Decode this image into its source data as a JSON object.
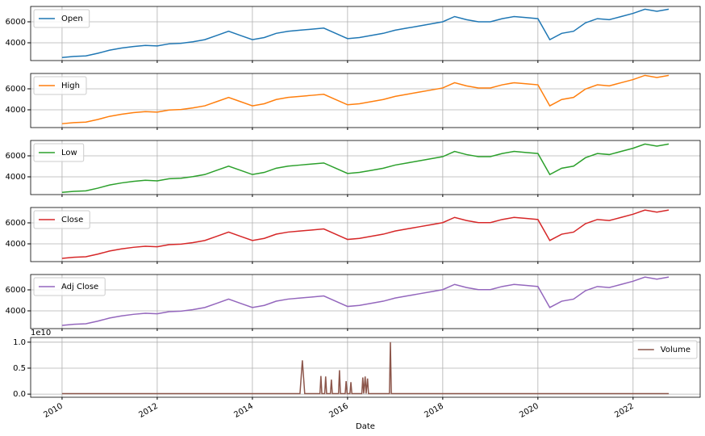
{
  "chart_data": [
    {
      "type": "line",
      "x": [
        2010,
        2010.25,
        2010.5,
        2010.75,
        2011,
        2011.25,
        2011.5,
        2011.75,
        2012,
        2012.25,
        2012.5,
        2012.75,
        2013,
        2013.25,
        2013.5,
        2013.75,
        2014,
        2014.25,
        2014.5,
        2014.75,
        2015,
        2015.25,
        2015.5,
        2015.75,
        2016,
        2016.25,
        2016.5,
        2016.75,
        2017,
        2017.25,
        2017.5,
        2017.75,
        2018,
        2018.25,
        2018.5,
        2018.75,
        2019,
        2019.25,
        2019.5,
        2019.75,
        2020,
        2020.25,
        2020.5,
        2020.75,
        2021,
        2021.25,
        2021.5,
        2021.75,
        2022,
        2022.25,
        2022.5,
        2022.75
      ],
      "series": [
        {
          "name": "Open",
          "color": "#1f77b4",
          "values": [
            2600,
            2700,
            2750,
            3000,
            3300,
            3500,
            3650,
            3750,
            3700,
            3900,
            3950,
            4100,
            4300,
            4700,
            5100,
            4700,
            4300,
            4500,
            4900,
            5100,
            5200,
            5300,
            5400,
            4900,
            4400,
            4500,
            4700,
            4900,
            5200,
            5400,
            5600,
            5800,
            6000,
            6500,
            6200,
            6000,
            6000,
            6300,
            6500,
            6400,
            6300,
            4300,
            4900,
            5100,
            5900,
            6300,
            6200,
            6500,
            6800,
            7200,
            7000,
            7200
          ]
        }
      ],
      "xlim": [
        2009.34,
        2023.41
      ],
      "xticks": [
        2010,
        2012,
        2014,
        2016,
        2018,
        2020,
        2022
      ],
      "ylim": [
        2310,
        7460
      ],
      "yticks": [
        4000,
        6000
      ],
      "grid": true,
      "legend": "upper left"
    },
    {
      "type": "line",
      "x": [
        2010,
        2010.25,
        2010.5,
        2010.75,
        2011,
        2011.25,
        2011.5,
        2011.75,
        2012,
        2012.25,
        2012.5,
        2012.75,
        2013,
        2013.25,
        2013.5,
        2013.75,
        2014,
        2014.25,
        2014.5,
        2014.75,
        2015,
        2015.25,
        2015.5,
        2015.75,
        2016,
        2016.25,
        2016.5,
        2016.75,
        2017,
        2017.25,
        2017.5,
        2017.75,
        2018,
        2018.25,
        2018.5,
        2018.75,
        2019,
        2019.25,
        2019.5,
        2019.75,
        2020,
        2020.25,
        2020.5,
        2020.75,
        2021,
        2021.25,
        2021.5,
        2021.75,
        2022,
        2022.25,
        2022.5,
        2022.75
      ],
      "series": [
        {
          "name": "High",
          "color": "#ff7f0e",
          "values": [
            2680,
            2780,
            2830,
            3080,
            3380,
            3580,
            3730,
            3830,
            3780,
            3980,
            4030,
            4180,
            4380,
            4780,
            5180,
            4780,
            4380,
            4580,
            4980,
            5180,
            5280,
            5380,
            5480,
            4980,
            4480,
            4580,
            4780,
            4980,
            5280,
            5480,
            5680,
            5880,
            6080,
            6580,
            6280,
            6080,
            6080,
            6380,
            6580,
            6480,
            6380,
            4380,
            4980,
            5180,
            5980,
            6380,
            6280,
            6580,
            6880,
            7280,
            7080,
            7280
          ]
        }
      ],
      "xlim": [
        2009.34,
        2023.41
      ],
      "xticks": [
        2010,
        2012,
        2014,
        2016,
        2018,
        2020,
        2022
      ],
      "ylim": [
        2310,
        7460
      ],
      "yticks": [
        4000,
        6000
      ],
      "grid": true,
      "legend": "upper left"
    },
    {
      "type": "line",
      "x": [
        2010,
        2010.25,
        2010.5,
        2010.75,
        2011,
        2011.25,
        2011.5,
        2011.75,
        2012,
        2012.25,
        2012.5,
        2012.75,
        2013,
        2013.25,
        2013.5,
        2013.75,
        2014,
        2014.25,
        2014.5,
        2014.75,
        2015,
        2015.25,
        2015.5,
        2015.75,
        2016,
        2016.25,
        2016.5,
        2016.75,
        2017,
        2017.25,
        2017.5,
        2017.75,
        2018,
        2018.25,
        2018.5,
        2018.75,
        2019,
        2019.25,
        2019.5,
        2019.75,
        2020,
        2020.25,
        2020.5,
        2020.75,
        2021,
        2021.25,
        2021.5,
        2021.75,
        2022,
        2022.25,
        2022.5,
        2022.75
      ],
      "series": [
        {
          "name": "Low",
          "color": "#2ca02c",
          "values": [
            2520,
            2620,
            2670,
            2920,
            3220,
            3420,
            3570,
            3670,
            3620,
            3820,
            3870,
            4020,
            4220,
            4620,
            5020,
            4620,
            4220,
            4420,
            4820,
            5020,
            5120,
            5220,
            5320,
            4820,
            4320,
            4420,
            4620,
            4820,
            5120,
            5320,
            5520,
            5720,
            5920,
            6420,
            6120,
            5920,
            5920,
            6220,
            6420,
            6320,
            6220,
            4220,
            4820,
            5020,
            5820,
            6220,
            6120,
            6420,
            6720,
            7120,
            6920,
            7120
          ]
        }
      ],
      "xlim": [
        2009.34,
        2023.41
      ],
      "xticks": [
        2010,
        2012,
        2014,
        2016,
        2018,
        2020,
        2022
      ],
      "ylim": [
        2310,
        7460
      ],
      "yticks": [
        4000,
        6000
      ],
      "grid": true,
      "legend": "upper left"
    },
    {
      "type": "line",
      "x": [
        2010,
        2010.25,
        2010.5,
        2010.75,
        2011,
        2011.25,
        2011.5,
        2011.75,
        2012,
        2012.25,
        2012.5,
        2012.75,
        2013,
        2013.25,
        2013.5,
        2013.75,
        2014,
        2014.25,
        2014.5,
        2014.75,
        2015,
        2015.25,
        2015.5,
        2015.75,
        2016,
        2016.25,
        2016.5,
        2016.75,
        2017,
        2017.25,
        2017.5,
        2017.75,
        2018,
        2018.25,
        2018.5,
        2018.75,
        2019,
        2019.25,
        2019.5,
        2019.75,
        2020,
        2020.25,
        2020.5,
        2020.75,
        2021,
        2021.25,
        2021.5,
        2021.75,
        2022,
        2022.25,
        2022.5,
        2022.75
      ],
      "series": [
        {
          "name": "Close",
          "color": "#d62728",
          "values": [
            2620,
            2720,
            2770,
            3020,
            3320,
            3520,
            3670,
            3770,
            3720,
            3920,
            3970,
            4120,
            4320,
            4720,
            5120,
            4720,
            4320,
            4520,
            4920,
            5120,
            5220,
            5320,
            5420,
            4920,
            4420,
            4520,
            4720,
            4920,
            5220,
            5420,
            5620,
            5820,
            6020,
            6520,
            6220,
            6020,
            6020,
            6320,
            6520,
            6420,
            6320,
            4320,
            4920,
            5120,
            5920,
            6320,
            6220,
            6520,
            6820,
            7220,
            7020,
            7220
          ]
        }
      ],
      "xlim": [
        2009.34,
        2023.41
      ],
      "xticks": [
        2010,
        2012,
        2014,
        2016,
        2018,
        2020,
        2022
      ],
      "ylim": [
        2310,
        7460
      ],
      "yticks": [
        4000,
        6000
      ],
      "grid": true,
      "legend": "upper left"
    },
    {
      "type": "line",
      "x": [
        2010,
        2010.25,
        2010.5,
        2010.75,
        2011,
        2011.25,
        2011.5,
        2011.75,
        2012,
        2012.25,
        2012.5,
        2012.75,
        2013,
        2013.25,
        2013.5,
        2013.75,
        2014,
        2014.25,
        2014.5,
        2014.75,
        2015,
        2015.25,
        2015.5,
        2015.75,
        2016,
        2016.25,
        2016.5,
        2016.75,
        2017,
        2017.25,
        2017.5,
        2017.75,
        2018,
        2018.25,
        2018.5,
        2018.75,
        2019,
        2019.25,
        2019.5,
        2019.75,
        2020,
        2020.25,
        2020.5,
        2020.75,
        2021,
        2021.25,
        2021.5,
        2021.75,
        2022,
        2022.25,
        2022.5,
        2022.75
      ],
      "series": [
        {
          "name": "Adj Close",
          "color": "#9467bd",
          "values": [
            2620,
            2720,
            2770,
            3020,
            3320,
            3520,
            3670,
            3770,
            3720,
            3920,
            3970,
            4120,
            4320,
            4720,
            5120,
            4720,
            4320,
            4520,
            4920,
            5120,
            5220,
            5320,
            5420,
            4920,
            4420,
            4520,
            4720,
            4920,
            5220,
            5420,
            5620,
            5820,
            6020,
            6520,
            6220,
            6020,
            6020,
            6320,
            6520,
            6420,
            6320,
            4320,
            4920,
            5120,
            5920,
            6320,
            6220,
            6520,
            6820,
            7220,
            7020,
            7220
          ]
        }
      ],
      "xlim": [
        2009.34,
        2023.41
      ],
      "xticks": [
        2010,
        2012,
        2014,
        2016,
        2018,
        2020,
        2022
      ],
      "ylim": [
        2310,
        7460
      ],
      "yticks": [
        4000,
        6000
      ],
      "grid": true,
      "legend": "upper left"
    },
    {
      "type": "line",
      "x": [
        2010,
        2015,
        2015.05,
        2015.1,
        2015.42,
        2015.44,
        2015.46,
        2015.52,
        2015.54,
        2015.56,
        2015.64,
        2015.66,
        2015.68,
        2015.81,
        2015.83,
        2015.85,
        2015.95,
        2015.97,
        2015.99,
        2016.05,
        2016.07,
        2016.09,
        2016.3,
        2016.32,
        2016.34,
        2016.37,
        2016.39,
        2016.42,
        2016.44,
        2016.88,
        2016.9,
        2016.92,
        2022.75
      ],
      "series": [
        {
          "name": "Volume",
          "color": "#8c564b",
          "values": [
            100000000,
            100000000,
            6500000000,
            100000000,
            100000000,
            3500000000,
            100000000,
            100000000,
            3400000000,
            100000000,
            100000000,
            2800000000,
            100000000,
            100000000,
            4600000000,
            100000000,
            100000000,
            2500000000,
            100000000,
            100000000,
            2300000000,
            100000000,
            100000000,
            3200000000,
            100000000,
            3400000000,
            100000000,
            3000000000,
            100000000,
            100000000,
            10000000000,
            100000000,
            100000000
          ]
        }
      ],
      "xlim": [
        2009.34,
        2023.41
      ],
      "xticks": [
        2010,
        2012,
        2014,
        2016,
        2018,
        2020,
        2022
      ],
      "ylim": [
        -600000000,
        10900000000
      ],
      "yticks": [
        {
          "value": 0,
          "label": "0.0"
        },
        {
          "value": 5000000000,
          "label": "0.5"
        },
        {
          "value": 10000000000,
          "label": "1.0"
        }
      ],
      "offset_label": "1e10",
      "xlabel": "Date",
      "grid": true,
      "legend": "upper right"
    }
  ]
}
